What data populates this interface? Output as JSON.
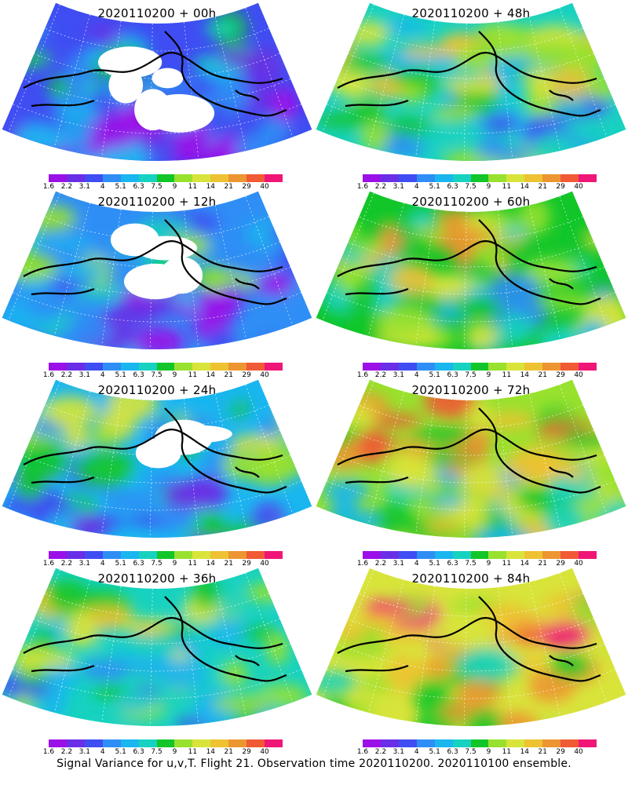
{
  "footer": "Signal Variance for u,v,T. Flight 21. Observation time 2020110200. 2020110100 ensemble.",
  "colorbar": {
    "labels": [
      "1.6",
      "2.2",
      "3.1",
      "4",
      "5.1",
      "6.3",
      "7.5",
      "9",
      "11",
      "14",
      "21",
      "29",
      "40"
    ],
    "colors": [
      "#9b10e8",
      "#6a2ee6",
      "#3f4df2",
      "#2f8ef5",
      "#19b6f0",
      "#17d2c0",
      "#12c62a",
      "#98e12e",
      "#d8e43a",
      "#eec232",
      "#ed9530",
      "#f05a35",
      "#ef1677"
    ]
  },
  "panels": [
    {
      "id": "p00",
      "title": "2020110200 + 00h",
      "forecast_hour": 0
    },
    {
      "id": "p48",
      "title": "2020110200 + 48h",
      "forecast_hour": 48
    },
    {
      "id": "p12",
      "title": "2020110200 + 12h",
      "forecast_hour": 12
    },
    {
      "id": "p60",
      "title": "2020110200 + 60h",
      "forecast_hour": 60
    },
    {
      "id": "p24",
      "title": "2020110200 + 24h",
      "forecast_hour": 24
    },
    {
      "id": "p72",
      "title": "2020110200 + 72h",
      "forecast_hour": 72
    },
    {
      "id": "p36",
      "title": "2020110200 + 36h",
      "forecast_hour": 36
    },
    {
      "id": "p84",
      "title": "2020110200 + 84h",
      "forecast_hour": 84
    }
  ]
}
